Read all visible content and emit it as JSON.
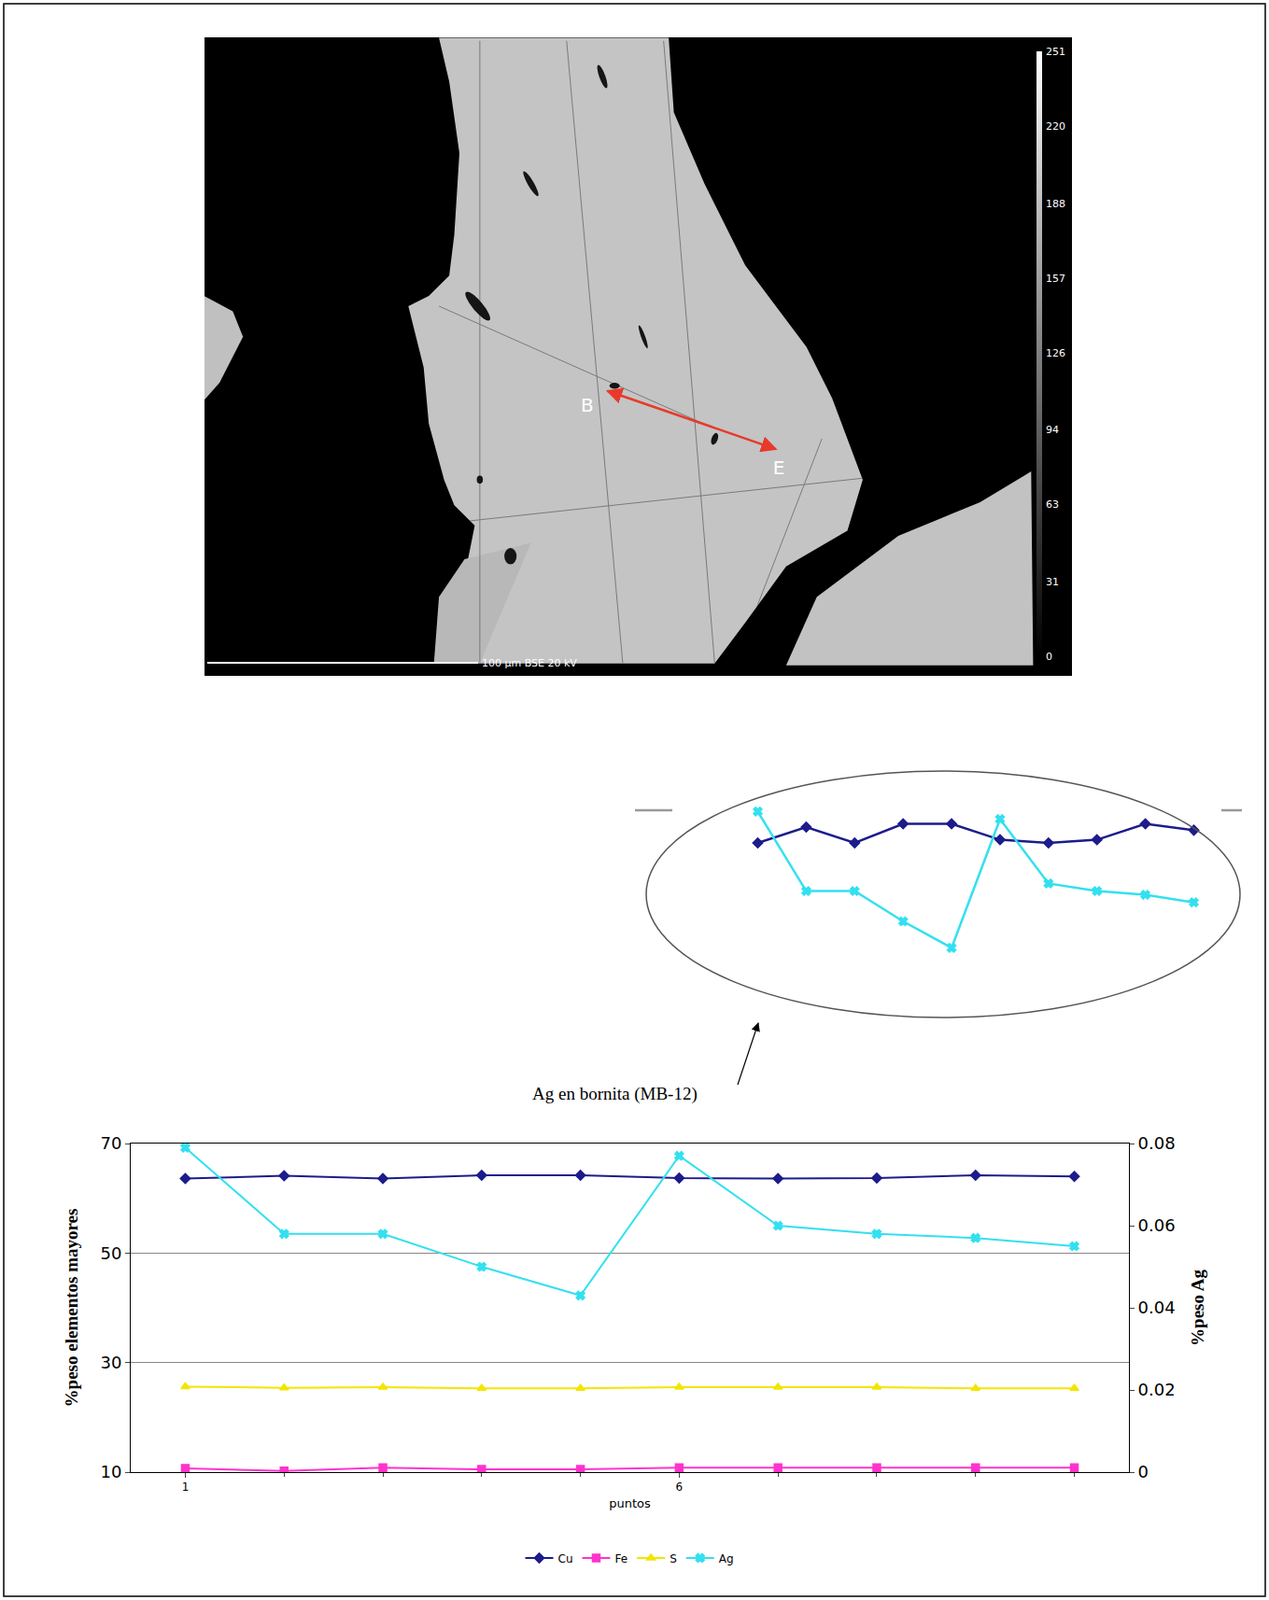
{
  "image": {
    "labels": [
      "B",
      "E"
    ],
    "scale_bar": "100 µm BSE 20 kV",
    "gray_ticks": [
      0,
      31,
      63,
      94,
      126,
      157,
      188,
      220,
      251
    ]
  },
  "chart_data": {
    "type": "line",
    "categories": [
      "1",
      null,
      null,
      null,
      null,
      "6",
      null,
      null,
      null,
      null
    ],
    "x_label": "puntos",
    "y_label": "%peso elementos mayores",
    "y2_label": "%peso Ag",
    "ylim": [
      10,
      70
    ],
    "yticks": [
      10,
      30,
      50,
      70
    ],
    "y2lim": [
      0,
      0.08
    ],
    "y2ticks": [
      0,
      0.02,
      0.04,
      0.06,
      0.08
    ],
    "grid": true,
    "legend": "bottom",
    "series": [
      {
        "name": "Cu",
        "color": "#1c1c8c",
        "marker": "diamond",
        "values": [
          63.6,
          64.1,
          63.6,
          64.2,
          64.2,
          63.7,
          63.6,
          63.7,
          64.2,
          64.0
        ]
      },
      {
        "name": "Fe",
        "color": "#ff33cc",
        "marker": "square",
        "values": [
          10.7,
          10.2,
          10.8,
          10.5,
          10.5,
          10.8,
          10.8,
          10.8,
          10.8,
          10.8
        ]
      },
      {
        "name": "S",
        "color": "#f2e600",
        "marker": "triangle-up",
        "values": [
          25.6,
          25.4,
          25.5,
          25.3,
          25.3,
          25.5,
          25.5,
          25.5,
          25.3,
          25.3
        ]
      },
      {
        "name": "Ag",
        "color": "#33e0f0",
        "marker": "x",
        "axis": "y2",
        "values": [
          0.079,
          0.058,
          0.058,
          0.05,
          0.043,
          0.077,
          0.06,
          0.058,
          0.057,
          0.055
        ]
      }
    ],
    "annotations": [
      "Ag en bornita (MB-12)"
    ],
    "inset": {
      "series": [
        "Cu",
        "Ag"
      ],
      "ylim": [
        59,
        65.3
      ],
      "y2lim": [
        0.032,
        0.085
      ]
    }
  }
}
